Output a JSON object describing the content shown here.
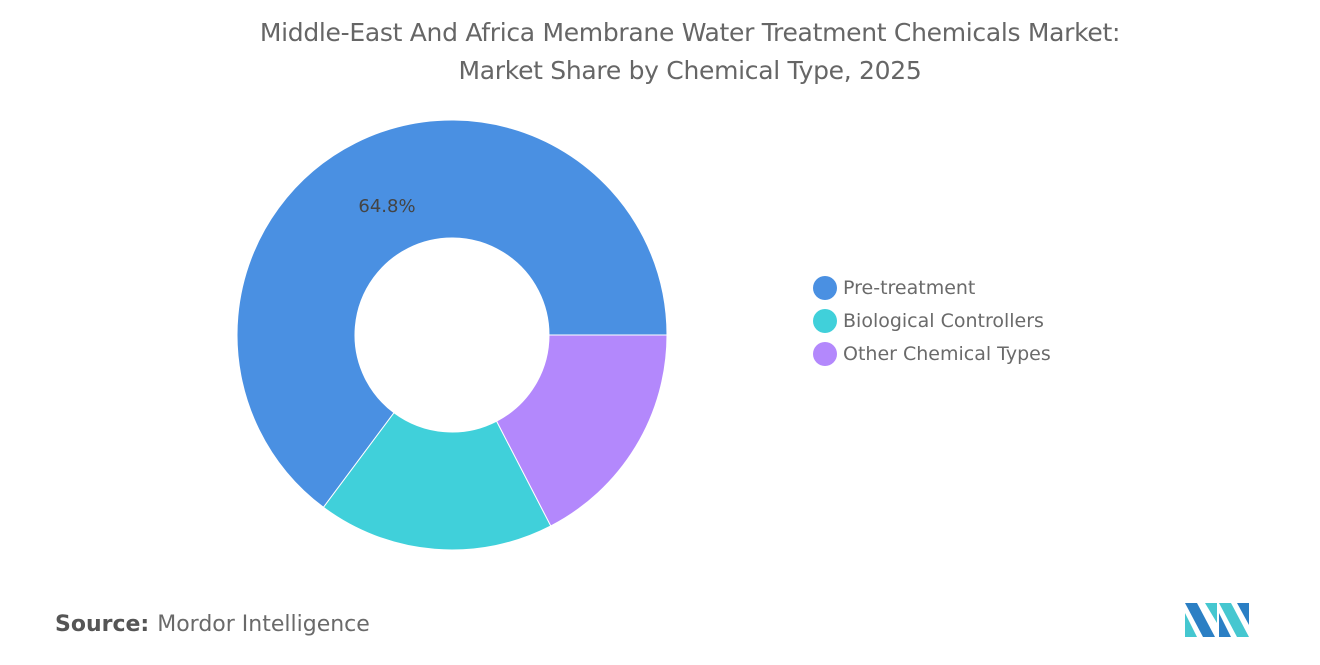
{
  "chart_data": {
    "type": "pie",
    "donut": true,
    "title": "Middle-East And Africa Membrane Water Treatment Chemicals Market:",
    "subtitle": "Market Share by Chemical Type, 2025",
    "slices": [
      {
        "name": "Pre-treatment",
        "value": 64.8,
        "label": "64.8%",
        "color": "#4a90e2"
      },
      {
        "name": "Biological Controllers",
        "value": 17.8,
        "label": "",
        "color": "#40d0da"
      },
      {
        "name": "Other Chemical Types",
        "value": 17.4,
        "label": "",
        "color": "#b388fc"
      }
    ],
    "legend_position": "right"
  },
  "source": {
    "label": "Source:",
    "value": "Mordor Intelligence"
  },
  "logo": {
    "text": "Mordor Intelligence",
    "colors": [
      "#2b7fc4",
      "#45c7d0"
    ]
  }
}
